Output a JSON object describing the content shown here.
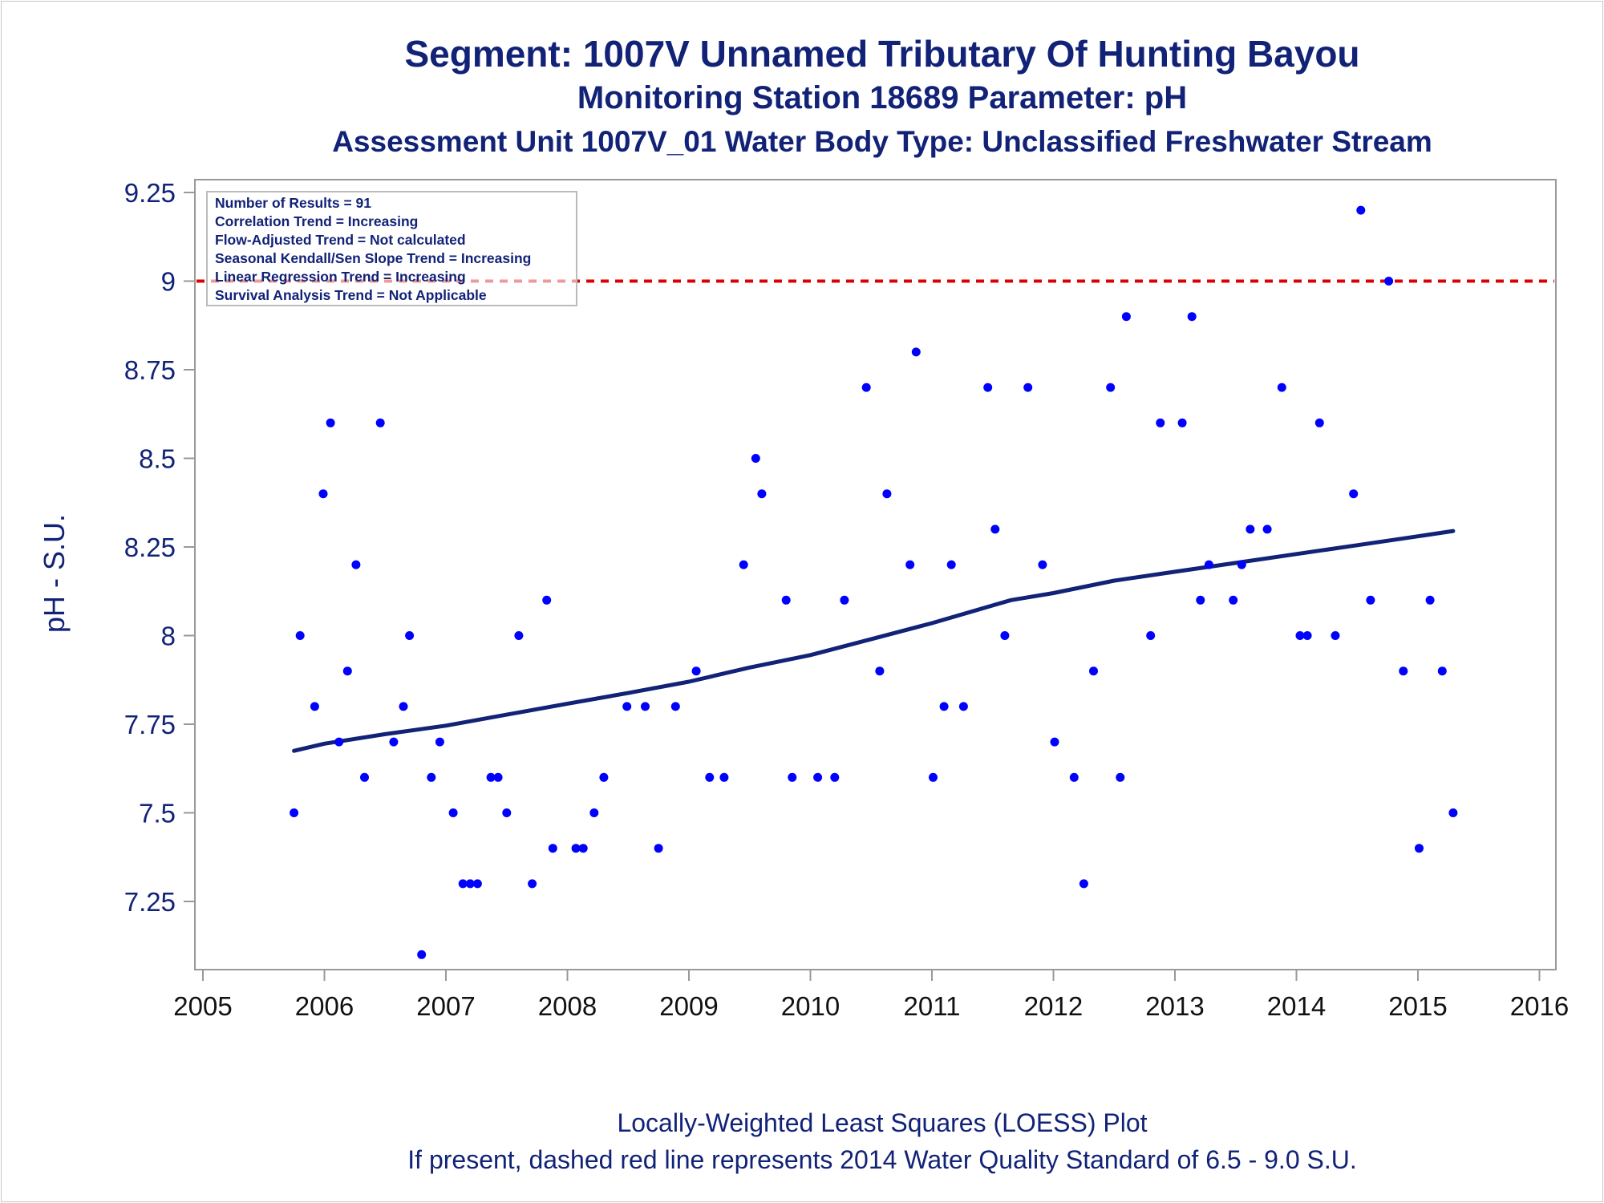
{
  "titles": {
    "line1": "Segment: 1007V  Unnamed Tributary Of Hunting Bayou",
    "line2": "Monitoring Station 18689 Parameter: pH",
    "line3": "Assessment Unit 1007V_01   Water Body Type: Unclassified Freshwater Stream"
  },
  "footnotes": {
    "line1": "Locally-Weighted Least Squares (LOESS) Plot",
    "line2": "If present, dashed red line represents 2014 Water Quality Standard of 6.5 - 9.0 S.U."
  },
  "legend_box": [
    "Number of Results = 91",
    "Correlation Trend = Increasing",
    "Flow-Adjusted Trend = Not calculated",
    "Seasonal Kendall/Sen Slope Trend = Increasing",
    "Linear Regression Trend = Increasing",
    "Survival Analysis Trend = Not Applicable"
  ],
  "colors": {
    "points": "#0000ff",
    "loess_line": "#112277",
    "standard_line": "#dd0000",
    "axis": "#999999",
    "text": "#112277"
  },
  "chart_data": {
    "type": "scatter",
    "xlabel": "",
    "ylabel": "pH - S.U.",
    "xlim": [
      2005,
      2016
    ],
    "ylim": [
      7.1,
      9.3
    ],
    "x_ticks": [
      2005,
      2006,
      2007,
      2008,
      2009,
      2010,
      2011,
      2012,
      2013,
      2014,
      2015,
      2016
    ],
    "x_tick_labels": [
      "2005",
      "2006",
      "2007",
      "2008",
      "2009",
      "2010",
      "2011",
      "2012",
      "2013",
      "2014",
      "2015",
      "2016"
    ],
    "y_ticks": [
      7.25,
      7.5,
      7.75,
      8,
      8.25,
      8.5,
      8.75,
      9,
      9.25
    ],
    "y_tick_labels": [
      "7.25",
      "7.5",
      "7.75",
      "8",
      "8.25",
      "8.5",
      "8.75",
      "9",
      "9.25"
    ],
    "grid": false,
    "legend": "top-left",
    "reference_line": {
      "y": 9.0,
      "style": "dashed"
    },
    "series": [
      {
        "type": "scatter",
        "x": [
          2005.75,
          2005.8,
          2005.92,
          2005.99,
          2006.05,
          2006.12,
          2006.19,
          2006.26,
          2006.33,
          2006.46,
          2006.57,
          2006.65,
          2006.7,
          2006.8,
          2006.88,
          2006.95,
          2007.06,
          2007.14,
          2007.2,
          2007.26,
          2007.37,
          2007.43,
          2007.5,
          2007.6,
          2007.71,
          2007.83,
          2007.88,
          2008.07,
          2008.13,
          2008.22,
          2008.3,
          2008.49,
          2008.64,
          2008.75,
          2008.89,
          2009.06,
          2009.17,
          2009.29,
          2009.45,
          2009.55,
          2009.6,
          2009.8,
          2009.85,
          2010.06,
          2010.2,
          2010.28,
          2010.46,
          2010.57,
          2010.63,
          2010.82,
          2010.87,
          2011.01,
          2011.1,
          2011.16,
          2011.26,
          2011.46,
          2011.52,
          2011.6,
          2011.79,
          2011.91,
          2012.01,
          2012.17,
          2012.25,
          2012.33,
          2012.47,
          2012.55,
          2012.6,
          2012.8,
          2012.88,
          2013.06,
          2013.14,
          2013.21,
          2013.28,
          2013.48,
          2013.55,
          2013.62,
          2013.76,
          2013.88,
          2014.03,
          2014.09,
          2014.19,
          2014.32,
          2014.47,
          2014.53,
          2014.61,
          2014.76,
          2014.88,
          2015.01,
          2015.1,
          2015.2,
          2015.29
        ],
        "y": [
          7.5,
          8.0,
          7.8,
          8.4,
          8.6,
          7.7,
          7.9,
          8.2,
          7.6,
          8.6,
          7.7,
          7.8,
          8.0,
          7.1,
          7.6,
          7.7,
          7.5,
          7.3,
          7.3,
          7.3,
          7.6,
          7.6,
          7.5,
          8.0,
          7.3,
          8.1,
          7.4,
          7.4,
          7.4,
          7.5,
          7.6,
          7.8,
          7.8,
          7.4,
          7.8,
          7.9,
          7.6,
          7.6,
          8.2,
          8.5,
          8.4,
          8.1,
          7.6,
          7.6,
          7.6,
          8.1,
          8.7,
          7.9,
          8.4,
          8.2,
          8.8,
          7.6,
          7.8,
          8.2,
          7.8,
          8.7,
          8.3,
          8.0,
          8.7,
          8.2,
          7.7,
          7.6,
          7.3,
          7.9,
          8.7,
          7.6,
          8.9,
          8.0,
          8.6,
          8.6,
          8.9,
          8.1,
          8.2,
          8.1,
          8.2,
          8.3,
          8.3,
          8.7,
          8.0,
          8.0,
          8.6,
          8.0,
          8.4,
          9.2,
          8.1,
          9.0,
          7.9,
          7.4,
          8.1,
          7.9,
          7.5
        ]
      },
      {
        "type": "line",
        "x": [
          2005.75,
          2006.0,
          2006.5,
          2007.0,
          2007.5,
          2008.0,
          2008.5,
          2009.0,
          2009.5,
          2010.0,
          2010.5,
          2011.0,
          2011.5,
          2011.65,
          2012.0,
          2012.5,
          2013.0,
          2013.5,
          2014.0,
          2014.5,
          2015.0,
          2015.29
        ],
        "y": [
          7.675,
          7.695,
          7.722,
          7.746,
          7.777,
          7.808,
          7.838,
          7.87,
          7.91,
          7.945,
          7.99,
          8.035,
          8.085,
          8.1,
          8.12,
          8.155,
          8.18,
          8.205,
          8.23,
          8.255,
          8.28,
          8.295
        ]
      }
    ]
  }
}
